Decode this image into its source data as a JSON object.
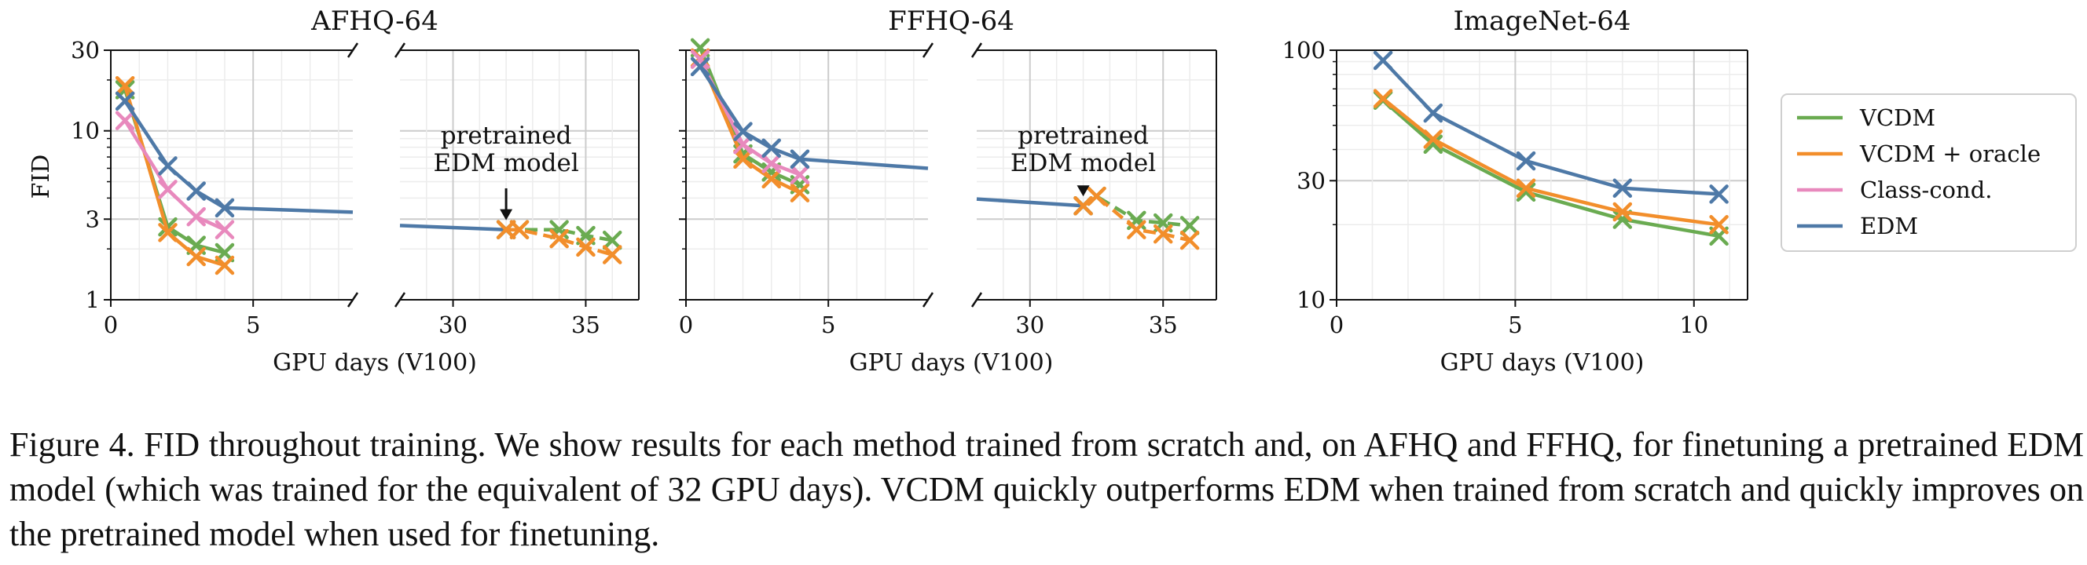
{
  "colors": {
    "VCDM": "#6aab51",
    "VCDM + oracle": "#f28e2b",
    "Class-cond.": "#e889bd",
    "EDM": "#4e79a7",
    "grid_major": "#cccccc",
    "grid_minor": "#ececec"
  },
  "chart_data": [
    {
      "id": "afhq",
      "type": "line",
      "title": "AFHQ-64",
      "xlabel": "GPU days (V100)",
      "ylabel": "FID",
      "yscale": "log",
      "ylim": [
        1,
        30
      ],
      "yticks": [
        "1",
        "3",
        "10",
        "30"
      ],
      "broken_x_axis": true,
      "left_xlim": [
        0,
        8.5
      ],
      "right_xlim": [
        28,
        37
      ],
      "xticks_left": [
        "0",
        "5"
      ],
      "xticks_right": [
        "30",
        "35"
      ],
      "grid": true,
      "series": [
        {
          "name": "VCDM",
          "points": [
            [
              0.5,
              17.5
            ],
            [
              2,
              2.7
            ],
            [
              3,
              2.1
            ],
            [
              4,
              1.9
            ]
          ],
          "markers": true,
          "style": "solid"
        },
        {
          "name": "VCDM + oracle",
          "points": [
            [
              0.5,
              18.5
            ],
            [
              2,
              2.5
            ],
            [
              3,
              1.8
            ],
            [
              4,
              1.6
            ]
          ],
          "markers": true,
          "style": "solid"
        },
        {
          "name": "Class-cond.",
          "points": [
            [
              0.5,
              11.5
            ],
            [
              2,
              4.5
            ],
            [
              3,
              3.1
            ],
            [
              4,
              2.6
            ]
          ],
          "markers": true,
          "style": "solid"
        },
        {
          "name": "EDM",
          "points": [
            [
              0.5,
              15
            ],
            [
              2,
              6.2
            ],
            [
              3,
              4.4
            ],
            [
              4,
              3.5
            ],
            [
              8.5,
              3.3
            ]
          ],
          "markers": [
            0,
            1,
            2,
            3
          ],
          "style": "solid"
        },
        {
          "name": "EDM",
          "points": [
            [
              28,
              2.75
            ],
            [
              32,
              2.6
            ]
          ],
          "markers": [
            1
          ],
          "style": "solid"
        },
        {
          "name": "VCDM",
          "points": [
            [
              32,
              2.6
            ],
            [
              32.5,
              2.6
            ],
            [
              34,
              2.6
            ],
            [
              35,
              2.4
            ],
            [
              36,
              2.25
            ]
          ],
          "markers": true,
          "style": "dashed"
        },
        {
          "name": "VCDM + oracle",
          "points": [
            [
              32,
              2.6
            ],
            [
              32.5,
              2.6
            ],
            [
              34,
              2.3
            ],
            [
              35,
              2.05
            ],
            [
              36,
              1.85
            ]
          ],
          "markers": true,
          "style": "dashed"
        }
      ],
      "annotation": {
        "lines": [
          "pretrained",
          "EDM model"
        ],
        "x": 32,
        "y": 2.6
      }
    },
    {
      "id": "ffhq",
      "type": "line",
      "title": "FFHQ-64",
      "xlabel": "GPU days (V100)",
      "ylabel": "",
      "yscale": "log",
      "ylim": [
        1,
        30
      ],
      "broken_x_axis": true,
      "left_xlim": [
        0,
        8.5
      ],
      "right_xlim": [
        28,
        37
      ],
      "xticks_left": [
        "0",
        "5"
      ],
      "xticks_right": [
        "30",
        "35"
      ],
      "grid": true,
      "series": [
        {
          "name": "VCDM",
          "points": [
            [
              0.5,
              31
            ],
            [
              2,
              7.3
            ],
            [
              3,
              5.7
            ],
            [
              4,
              4.8
            ]
          ],
          "markers": true,
          "style": "solid"
        },
        {
          "name": "VCDM + oracle",
          "points": [
            [
              0.5,
              27
            ],
            [
              2,
              6.8
            ],
            [
              3,
              5.2
            ],
            [
              4,
              4.3
            ]
          ],
          "markers": true,
          "style": "solid"
        },
        {
          "name": "Class-cond.",
          "points": [
            [
              0.5,
              26.5
            ],
            [
              2,
              8.3
            ],
            [
              3,
              6.4
            ],
            [
              4,
              5.5
            ]
          ],
          "markers": true,
          "style": "solid"
        },
        {
          "name": "EDM",
          "points": [
            [
              0.5,
              24
            ],
            [
              2,
              9.9
            ],
            [
              3,
              7.9
            ],
            [
              4,
              6.8
            ],
            [
              8.5,
              6.0
            ]
          ],
          "markers": [
            0,
            1,
            2,
            3
          ],
          "style": "solid"
        },
        {
          "name": "EDM",
          "points": [
            [
              28,
              3.95
            ],
            [
              32,
              3.6
            ]
          ],
          "markers": [
            1
          ],
          "style": "solid"
        },
        {
          "name": "VCDM",
          "points": [
            [
              32,
              3.6
            ],
            [
              32.5,
              4.1
            ],
            [
              34,
              2.95
            ],
            [
              35,
              2.85
            ],
            [
              36,
              2.75
            ]
          ],
          "markers": true,
          "style": "dashed"
        },
        {
          "name": "VCDM + oracle",
          "points": [
            [
              32,
              3.6
            ],
            [
              32.5,
              4.1
            ],
            [
              34,
              2.6
            ],
            [
              35,
              2.45
            ],
            [
              36,
              2.25
            ]
          ],
          "markers": true,
          "style": "dashed"
        }
      ],
      "annotation": {
        "lines": [
          "pretrained",
          "EDM model"
        ],
        "x": 32,
        "y": 3.6
      }
    },
    {
      "id": "imagenet",
      "type": "line",
      "title": "ImageNet-64",
      "xlabel": "GPU days (V100)",
      "ylabel": "",
      "yscale": "log",
      "ylim": [
        10,
        100
      ],
      "yticks": [
        "10",
        "30",
        "100"
      ],
      "xlim": [
        0,
        11.5
      ],
      "xticks": [
        "0",
        "5",
        "10"
      ],
      "grid": true,
      "series": [
        {
          "name": "VCDM",
          "points": [
            [
              1.3,
              63
            ],
            [
              2.7,
              42
            ],
            [
              5.3,
              27
            ],
            [
              8,
              21
            ],
            [
              10.7,
              18
            ]
          ],
          "markers": true,
          "style": "solid"
        },
        {
          "name": "VCDM + oracle",
          "points": [
            [
              1.3,
              64
            ],
            [
              2.7,
              44
            ],
            [
              5.3,
              28
            ],
            [
              8,
              22.5
            ],
            [
              10.7,
              20
            ]
          ],
          "markers": true,
          "style": "solid"
        },
        {
          "name": "EDM",
          "points": [
            [
              1.3,
              91
            ],
            [
              2.7,
              56
            ],
            [
              5.3,
              36
            ],
            [
              8,
              28
            ],
            [
              10.7,
              26.5
            ]
          ],
          "markers": true,
          "style": "solid"
        }
      ]
    }
  ],
  "legend": {
    "position": "right",
    "entries": [
      "VCDM",
      "VCDM + oracle",
      "Class-cond.",
      "EDM"
    ]
  },
  "caption": "Figure 4. FID throughout training. We show results for each method trained from scratch and, on AFHQ and FFHQ, for finetuning a pretrained EDM model (which was trained for the equivalent of 32 GPU days). VCDM quickly outperforms EDM when trained from scratch and quickly improves on the pretrained model when used for finetuning."
}
